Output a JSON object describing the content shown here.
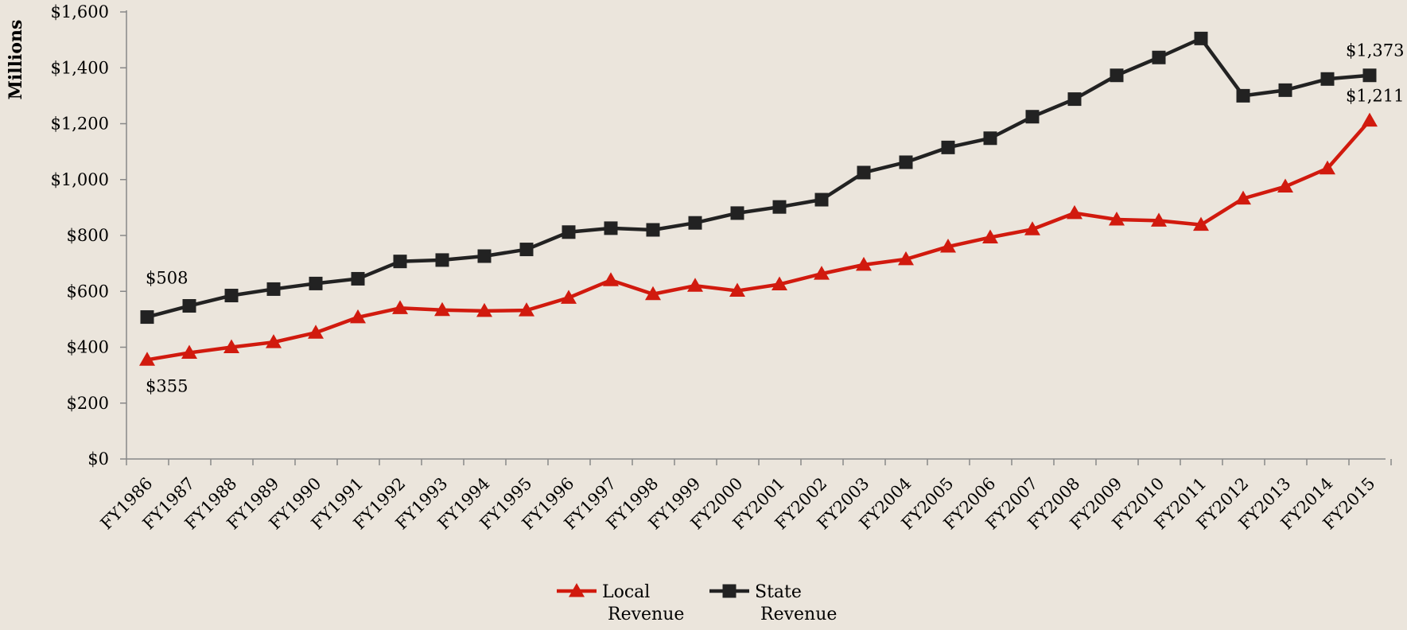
{
  "chart_data": {
    "type": "line",
    "title": "",
    "xlabel": "",
    "ylabel": "Millions",
    "ylim": [
      0,
      1600
    ],
    "yticks": [
      0,
      200,
      400,
      600,
      800,
      1000,
      1200,
      1400,
      1600
    ],
    "ytick_labels": [
      "$0",
      "$200",
      "$400",
      "$600",
      "$800",
      "$1,000",
      "$1,200",
      "$1,400",
      "$1,600"
    ],
    "categories": [
      "FY1986",
      "FY1987",
      "FY1988",
      "FY1989",
      "FY1990",
      "FY1991",
      "FY1992",
      "FY1993",
      "FY1994",
      "FY1995",
      "FY1996",
      "FY1997",
      "FY1998",
      "FY1999",
      "FY2000",
      "FY2001",
      "FY2002",
      "FY2003",
      "FY2004",
      "FY2005",
      "FY2006",
      "FY2007",
      "FY2008",
      "FY2009",
      "FY2010",
      "FY2011",
      "FY2012",
      "FY2013",
      "FY2014",
      "FY2015"
    ],
    "series": [
      {
        "name": "Local Revenue",
        "color": "#d11a0e",
        "marker": "triangle",
        "values": [
          355,
          380,
          400,
          418,
          452,
          507,
          540,
          533,
          530,
          532,
          577,
          640,
          590,
          620,
          602,
          625,
          663,
          695,
          715,
          760,
          793,
          822,
          880,
          857,
          853,
          838,
          932,
          975,
          1040,
          1211
        ]
      },
      {
        "name": "State Revenue",
        "color": "#222222",
        "marker": "square",
        "values": [
          508,
          548,
          585,
          608,
          628,
          645,
          707,
          712,
          726,
          750,
          812,
          826,
          820,
          845,
          880,
          902,
          928,
          1025,
          1062,
          1115,
          1148,
          1225,
          1288,
          1373,
          1437,
          1505,
          1300,
          1320,
          1360,
          1373
        ]
      }
    ],
    "annotations": [
      {
        "series": 1,
        "index": 0,
        "text": "$508"
      },
      {
        "series": 0,
        "index": 0,
        "text": "$355"
      },
      {
        "series": 1,
        "index": 29,
        "text": "$1,373"
      },
      {
        "series": 0,
        "index": 29,
        "text": "$1,211"
      }
    ],
    "legend": {
      "position": "bottom",
      "items": [
        {
          "line1": "Local",
          "line2": "Revenue"
        },
        {
          "line1": "State",
          "line2": "Revenue"
        }
      ]
    },
    "grid": false
  }
}
